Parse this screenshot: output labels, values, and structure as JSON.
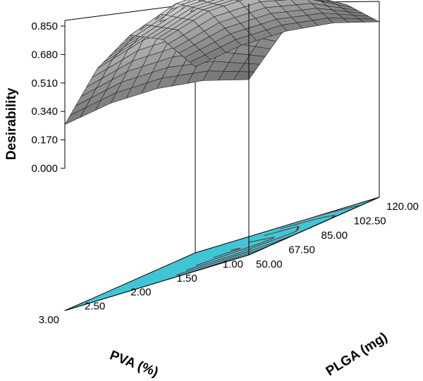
{
  "chart_data": {
    "type": "surface3d",
    "title": "",
    "zlabel": "Desirability",
    "xlabel": "PLGA (mg)",
    "ylabel": "PVA (%)",
    "z_ticks": [
      "0.000",
      "0.170",
      "0.340",
      "0.510",
      "0.680",
      "0.850"
    ],
    "x_ticks": [
      "50.00",
      "67.50",
      "85.00",
      "102.50",
      "120.00"
    ],
    "y_ticks": [
      "1.00",
      "1.50",
      "2.00",
      "2.50",
      "3.00"
    ],
    "zlim": [
      0,
      0.85
    ],
    "xlim": [
      50,
      120
    ],
    "ylim": [
      1,
      3
    ],
    "surface_model": {
      "peak_desirability": 0.76,
      "plga_profile": [
        {
          "plga": 50.0,
          "factor": 0.42
        },
        {
          "plga": 67.5,
          "factor": 0.82
        },
        {
          "plga": 85.0,
          "factor": 1.0
        },
        {
          "plga": 102.5,
          "factor": 0.82
        },
        {
          "plga": 120.0,
          "factor": 0.42
        }
      ],
      "pva_profile": [
        {
          "pva": 1.0,
          "factor": 0.62
        },
        {
          "pva": 1.5,
          "factor": 0.86
        },
        {
          "pva": 2.0,
          "factor": 0.97
        },
        {
          "pva": 2.5,
          "factor": 0.96
        },
        {
          "pva": 3.0,
          "factor": 0.82
        }
      ]
    },
    "colors": {
      "surface_low": "#5a5a5a",
      "surface_high": "#f2f2f2",
      "contour_fill": "#3fc6d6",
      "contour_line": "#6e2b2b",
      "axis": "#000000"
    }
  }
}
